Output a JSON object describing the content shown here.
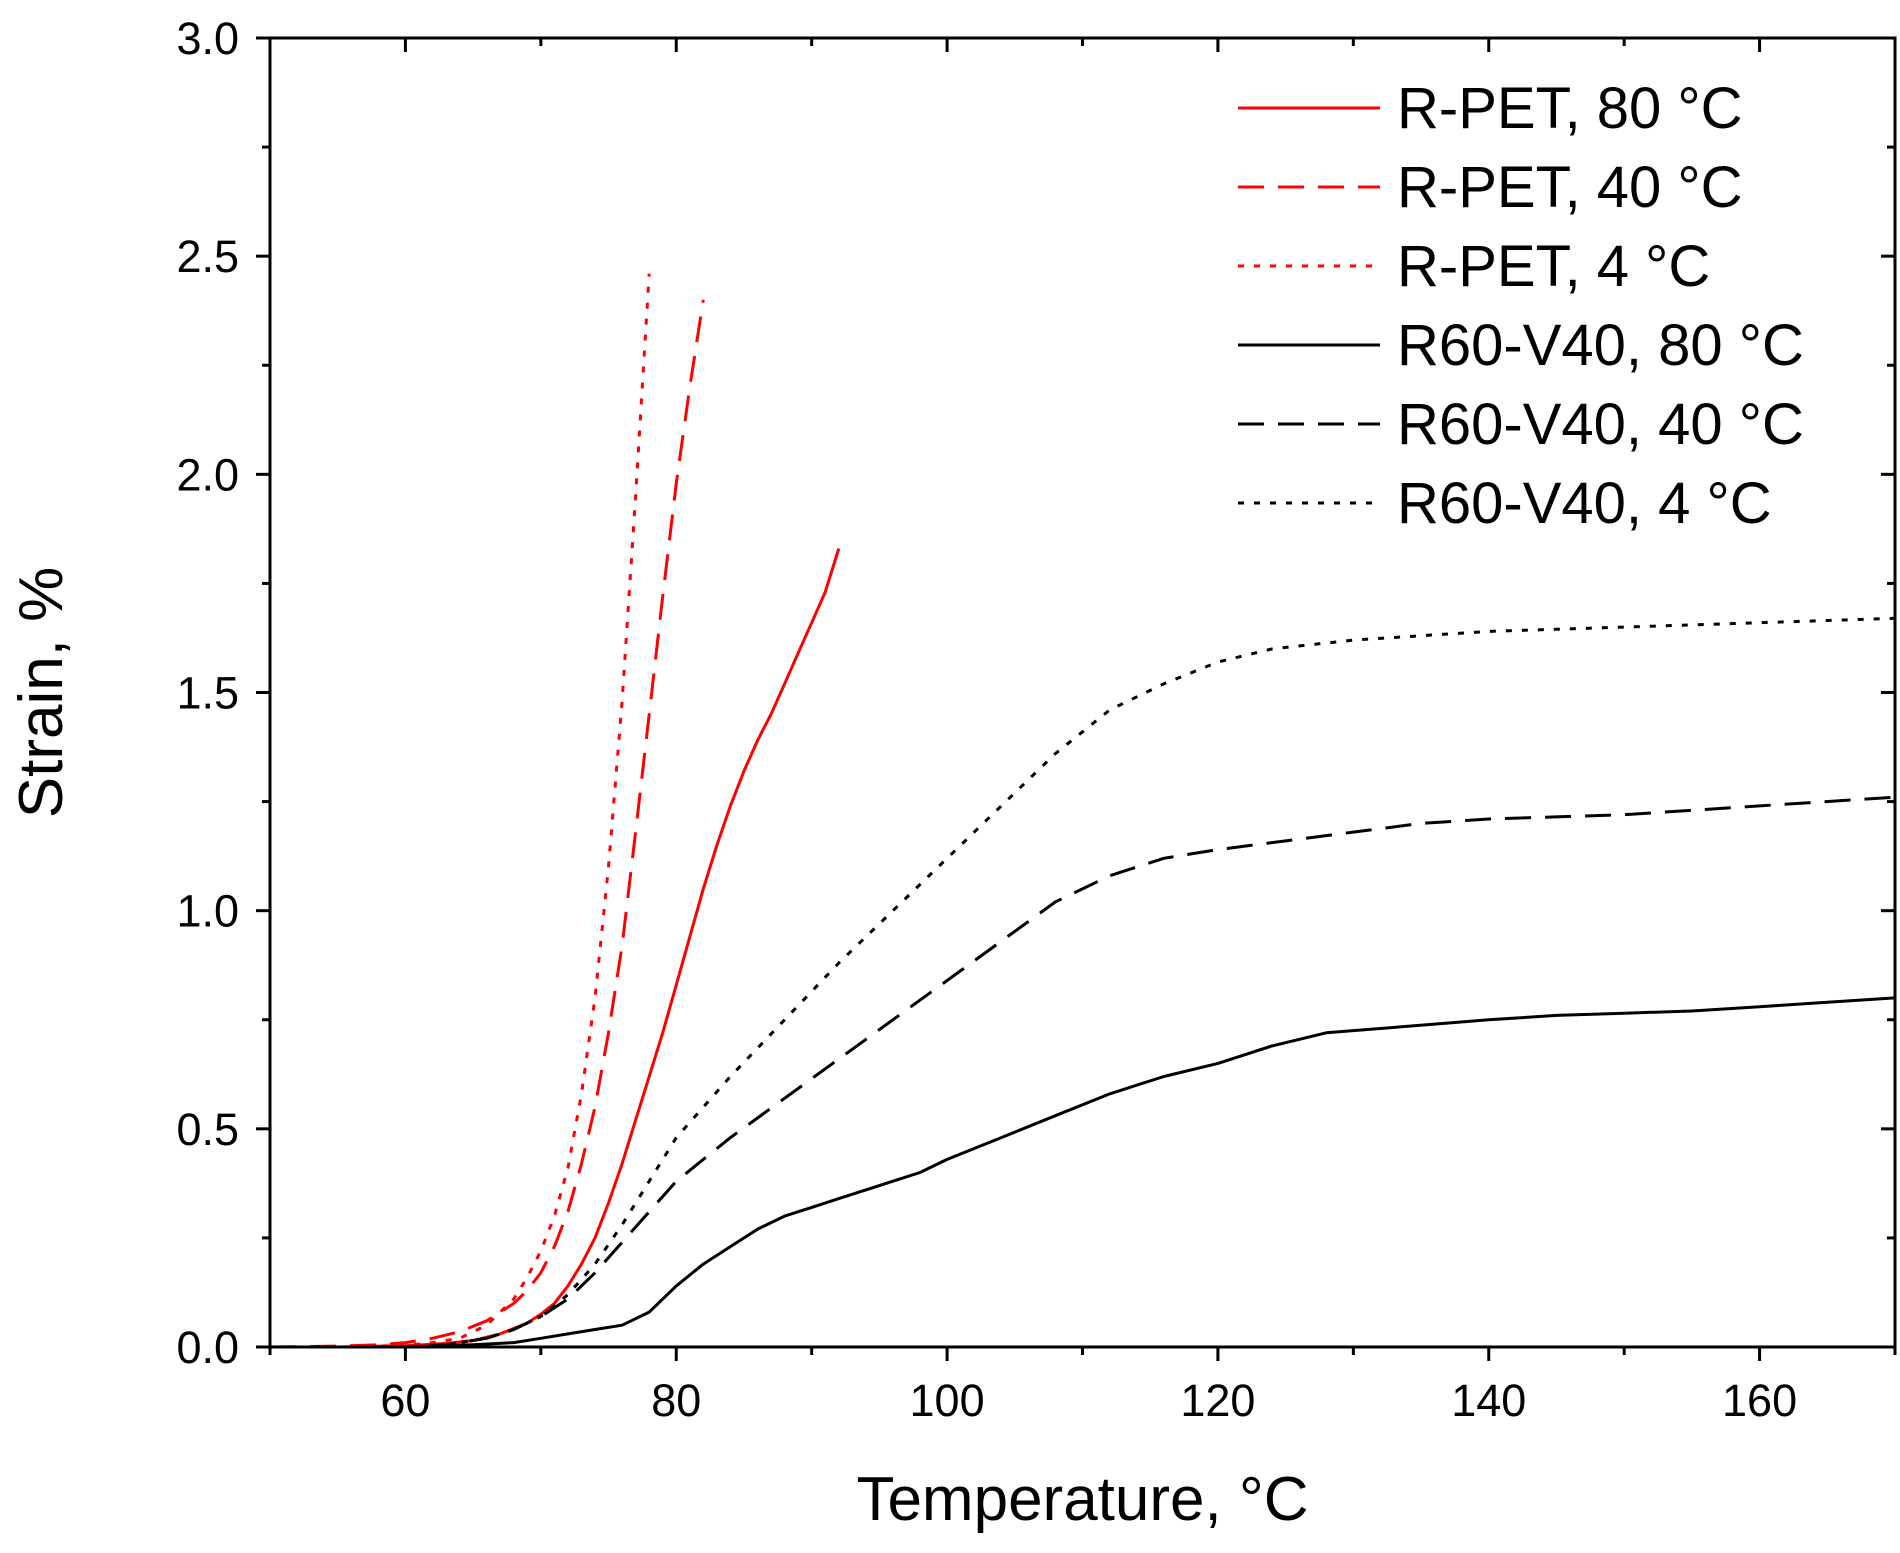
{
  "chart_data": {
    "type": "line",
    "title": "",
    "xlabel": "Temperature, °C",
    "ylabel": "Strain, %",
    "xlim": [
      50,
      170
    ],
    "ylim": [
      0,
      3.0
    ],
    "xticks": [
      60,
      80,
      100,
      120,
      140,
      160
    ],
    "xtick_labels": [
      "60",
      "80",
      "100",
      "120",
      "140",
      "160"
    ],
    "yticks": [
      0,
      0.5,
      1.0,
      1.5,
      2.0,
      2.5,
      3.0
    ],
    "ytick_labels": [
      "0.0",
      "0.5",
      "1.0",
      "1.5",
      "2.0",
      "2.5",
      "3.0"
    ],
    "grid": false,
    "legend_position": "top-right",
    "series": [
      {
        "name": "R-PET, 80 °C",
        "color": "#ff0000",
        "dash": "solid",
        "x": [
          50,
          55,
          60,
          63,
          65,
          67,
          69,
          70,
          71,
          72,
          73,
          74,
          75,
          76,
          77,
          78,
          79,
          80,
          81,
          82,
          83,
          84,
          85,
          86,
          87,
          88,
          89,
          90,
          91,
          92
        ],
        "y": [
          0,
          0,
          0.003,
          0.008,
          0.015,
          0.03,
          0.055,
          0.075,
          0.1,
          0.14,
          0.19,
          0.25,
          0.33,
          0.42,
          0.52,
          0.62,
          0.72,
          0.83,
          0.94,
          1.05,
          1.15,
          1.24,
          1.32,
          1.39,
          1.45,
          1.52,
          1.59,
          1.66,
          1.73,
          1.83
        ]
      },
      {
        "name": "R-PET, 40 °C",
        "color": "#ff0000",
        "dash": "dashed",
        "x": [
          50,
          55,
          58,
          60,
          62,
          64,
          66,
          68,
          69,
          70,
          71,
          72,
          73,
          74,
          75,
          76,
          77,
          78,
          79,
          80,
          81,
          82
        ],
        "y": [
          0,
          0.002,
          0.005,
          0.01,
          0.02,
          0.035,
          0.06,
          0.1,
          0.13,
          0.17,
          0.23,
          0.31,
          0.42,
          0.55,
          0.72,
          0.92,
          1.18,
          1.45,
          1.72,
          1.98,
          2.2,
          2.4
        ]
      },
      {
        "name": "R-PET, 4 °C",
        "color": "#ff0000",
        "dash": "dotted",
        "x": [
          50,
          55,
          60,
          62,
          64,
          66,
          67,
          68,
          69,
          70,
          71,
          72,
          73,
          74,
          75,
          76,
          77,
          78
        ],
        "y": [
          0,
          0,
          0.004,
          0.01,
          0.02,
          0.05,
          0.08,
          0.11,
          0.16,
          0.22,
          0.3,
          0.41,
          0.58,
          0.8,
          1.1,
          1.48,
          1.95,
          2.46
        ]
      },
      {
        "name": "R60-V40, 80 °C",
        "color": "#000000",
        "dash": "solid",
        "x": [
          50,
          60,
          65,
          68,
          70,
          72,
          74,
          76,
          78,
          80,
          82,
          84,
          86,
          88,
          90,
          92,
          94,
          96,
          98,
          100,
          104,
          108,
          112,
          116,
          120,
          124,
          128,
          132,
          136,
          140,
          145,
          150,
          155,
          160,
          165,
          170
        ],
        "y": [
          0,
          0,
          0.005,
          0.01,
          0.02,
          0.03,
          0.04,
          0.05,
          0.08,
          0.14,
          0.19,
          0.23,
          0.27,
          0.3,
          0.32,
          0.34,
          0.36,
          0.38,
          0.4,
          0.43,
          0.48,
          0.53,
          0.58,
          0.62,
          0.65,
          0.69,
          0.72,
          0.73,
          0.74,
          0.75,
          0.76,
          0.765,
          0.77,
          0.78,
          0.79,
          0.8
        ]
      },
      {
        "name": "R60-V40, 40 °C",
        "color": "#000000",
        "dash": "dashed",
        "x": [
          50,
          60,
          63,
          66,
          68,
          70,
          72,
          74,
          76,
          78,
          80,
          84,
          88,
          92,
          96,
          100,
          104,
          108,
          112,
          116,
          120,
          125,
          130,
          135,
          140,
          150,
          160,
          170
        ],
        "y": [
          0,
          0,
          0.005,
          0.02,
          0.04,
          0.07,
          0.11,
          0.17,
          0.24,
          0.31,
          0.38,
          0.48,
          0.57,
          0.66,
          0.75,
          0.84,
          0.93,
          1.02,
          1.08,
          1.12,
          1.14,
          1.16,
          1.18,
          1.2,
          1.21,
          1.22,
          1.24,
          1.26
        ]
      },
      {
        "name": "R60-V40, 4 °C",
        "color": "#000000",
        "dash": "dotted",
        "x": [
          50,
          60,
          63,
          66,
          68,
          70,
          72,
          74,
          76,
          78,
          80,
          84,
          88,
          92,
          96,
          100,
          104,
          108,
          112,
          116,
          120,
          124,
          130,
          140,
          150,
          160,
          170
        ],
        "y": [
          0,
          0,
          0.005,
          0.02,
          0.04,
          0.07,
          0.12,
          0.19,
          0.28,
          0.38,
          0.48,
          0.62,
          0.75,
          0.88,
          1.0,
          1.12,
          1.24,
          1.36,
          1.46,
          1.52,
          1.57,
          1.6,
          1.62,
          1.64,
          1.65,
          1.66,
          1.67
        ]
      }
    ]
  }
}
